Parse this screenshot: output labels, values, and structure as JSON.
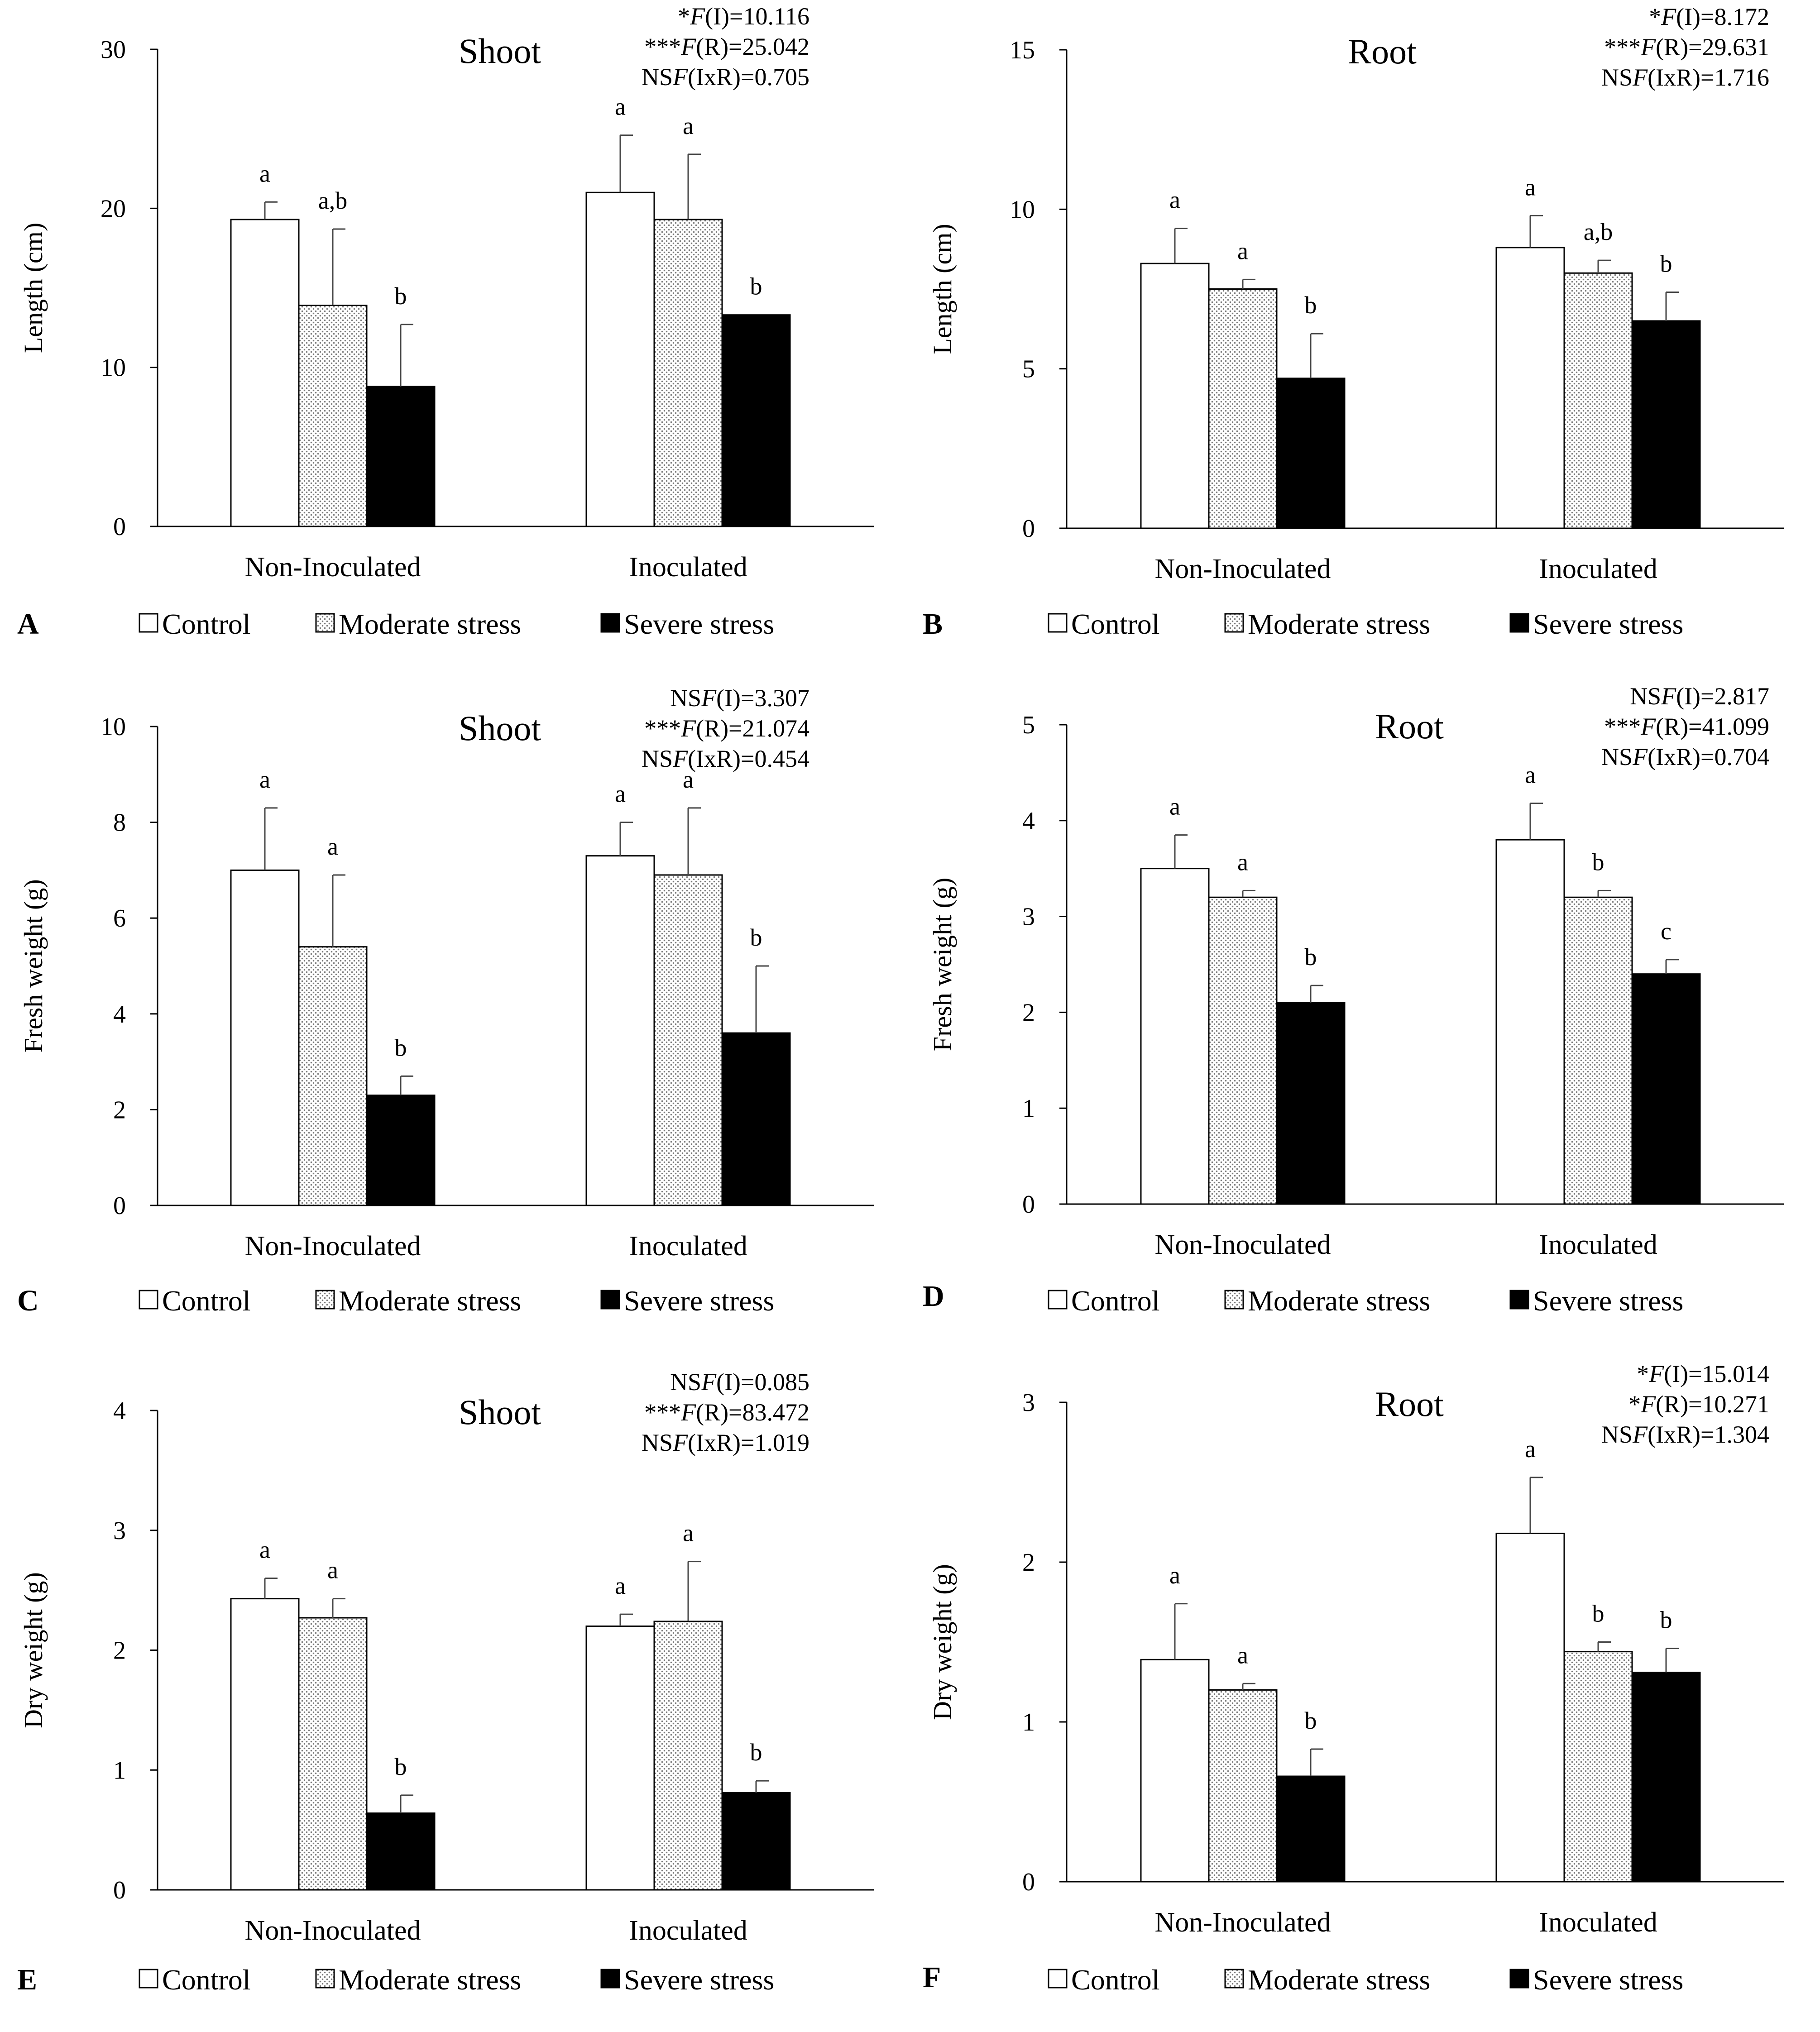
{
  "chart_data": [
    {
      "panel_label": "A",
      "type": "bar",
      "title": "Shoot",
      "ylabel": "Length (cm)",
      "ylim": [
        0,
        30
      ],
      "yticks": [
        0,
        10,
        20,
        30
      ],
      "categories": [
        "Non-Inoculated",
        "Inoculated"
      ],
      "series": [
        {
          "name": "Control",
          "values": [
            19.3,
            21.0
          ],
          "errors": [
            1.1,
            3.6
          ],
          "letters": [
            "a",
            "a"
          ]
        },
        {
          "name": "Moderate stress",
          "values": [
            13.9,
            19.3
          ],
          "errors": [
            4.8,
            4.1
          ],
          "letters": [
            "a,b",
            "a"
          ]
        },
        {
          "name": "Severe stress",
          "values": [
            8.8,
            13.3
          ],
          "errors": [
            3.9,
            0.0
          ],
          "letters": [
            "b",
            "b"
          ]
        }
      ],
      "stats": [
        "*F(I)=10.116",
        "***F(R)=25.042",
        "NSF(IxR)=0.705"
      ]
    },
    {
      "panel_label": "B",
      "type": "bar",
      "title": "Root",
      "ylabel": "Length (cm)",
      "ylim": [
        0,
        15
      ],
      "yticks": [
        0,
        5,
        10,
        15
      ],
      "categories": [
        "Non-Inoculated",
        "Inoculated"
      ],
      "series": [
        {
          "name": "Control",
          "values": [
            8.3,
            8.8
          ],
          "errors": [
            1.1,
            1.0
          ],
          "letters": [
            "a",
            "a"
          ]
        },
        {
          "name": "Moderate stress",
          "values": [
            7.5,
            8.0
          ],
          "errors": [
            0.3,
            0.4
          ],
          "letters": [
            "a",
            "a,b"
          ]
        },
        {
          "name": "Severe stress",
          "values": [
            4.7,
            6.5
          ],
          "errors": [
            1.4,
            0.9
          ],
          "letters": [
            "b",
            "b"
          ]
        }
      ],
      "stats": [
        "*F(I)=8.172",
        "***F(R)=29.631",
        "NSF(IxR)=1.716"
      ]
    },
    {
      "panel_label": "C",
      "type": "bar",
      "title": "Shoot",
      "ylabel": "Fresh weight (g)",
      "ylim": [
        0,
        10
      ],
      "yticks": [
        0,
        2,
        4,
        6,
        8,
        10
      ],
      "categories": [
        "Non-Inoculated",
        "Inoculated"
      ],
      "series": [
        {
          "name": "Control",
          "values": [
            7.0,
            7.3
          ],
          "errors": [
            1.3,
            0.7
          ],
          "letters": [
            "a",
            "a"
          ]
        },
        {
          "name": "Moderate stress",
          "values": [
            5.4,
            6.9
          ],
          "errors": [
            1.5,
            1.4
          ],
          "letters": [
            "a",
            "a"
          ]
        },
        {
          "name": "Severe stress",
          "values": [
            2.3,
            3.6
          ],
          "errors": [
            0.4,
            1.4
          ],
          "letters": [
            "b",
            "b"
          ]
        }
      ],
      "stats": [
        "NSF(I)=3.307",
        "***F(R)=21.074",
        "NSF(IxR)=0.454"
      ]
    },
    {
      "panel_label": "D",
      "type": "bar",
      "title": "Root",
      "ylabel": "Fresh weight (g)",
      "ylim": [
        0,
        5
      ],
      "yticks": [
        0,
        1,
        2,
        3,
        4,
        5
      ],
      "categories": [
        "Non-Inoculated",
        "Inoculated"
      ],
      "series": [
        {
          "name": "Control",
          "values": [
            3.5,
            3.8
          ],
          "errors": [
            0.35,
            0.38
          ],
          "letters": [
            "a",
            "a"
          ]
        },
        {
          "name": "Moderate stress",
          "values": [
            3.2,
            3.2
          ],
          "errors": [
            0.07,
            0.07
          ],
          "letters": [
            "a",
            "b"
          ]
        },
        {
          "name": "Severe stress",
          "values": [
            2.1,
            2.4
          ],
          "errors": [
            0.18,
            0.15
          ],
          "letters": [
            "b",
            "c"
          ]
        }
      ],
      "stats": [
        "NSF(I)=2.817",
        "***F(R)=41.099",
        "NSF(IxR)=0.704"
      ]
    },
    {
      "panel_label": "E",
      "type": "bar",
      "title": "Shoot",
      "ylabel": "Dry weight (g)",
      "ylim": [
        0,
        4
      ],
      "yticks": [
        0,
        1,
        2,
        3,
        4
      ],
      "categories": [
        "Non-Inoculated",
        "Inoculated"
      ],
      "series": [
        {
          "name": "Control",
          "values": [
            2.43,
            2.2
          ],
          "errors": [
            0.17,
            0.1
          ],
          "letters": [
            "a",
            "a"
          ]
        },
        {
          "name": "Moderate stress",
          "values": [
            2.27,
            2.24
          ],
          "errors": [
            0.16,
            0.5
          ],
          "letters": [
            "a",
            "a"
          ]
        },
        {
          "name": "Severe stress",
          "values": [
            0.64,
            0.81
          ],
          "errors": [
            0.15,
            0.1
          ],
          "letters": [
            "b",
            "b"
          ]
        }
      ],
      "stats": [
        "NSF(I)=0.085",
        "***F(R)=83.472",
        "NSF(IxR)=1.019"
      ]
    },
    {
      "panel_label": "F",
      "type": "bar",
      "title": "Root",
      "ylabel": "Dry weight (g)",
      "ylim": [
        0,
        3
      ],
      "yticks": [
        0,
        1,
        2,
        3
      ],
      "categories": [
        "Non-Inoculated",
        "Inoculated"
      ],
      "series": [
        {
          "name": "Control",
          "values": [
            1.39,
            2.18
          ],
          "errors": [
            0.35,
            0.35
          ],
          "letters": [
            "a",
            "a"
          ]
        },
        {
          "name": "Moderate stress",
          "values": [
            1.2,
            1.44
          ],
          "errors": [
            0.04,
            0.06
          ],
          "letters": [
            "a",
            "b"
          ]
        },
        {
          "name": "Severe stress",
          "values": [
            0.66,
            1.31
          ],
          "errors": [
            0.17,
            0.15
          ],
          "letters": [
            "b",
            "b"
          ]
        }
      ],
      "stats": [
        "*F(I)=15.014",
        "*F(R)=10.271",
        "NSF(IxR)=1.304"
      ]
    }
  ],
  "series_styles": {
    "Control": {
      "fill": "#ffffff"
    },
    "Moderate stress": {
      "fill": "dots",
      "dot_color": "#7a7a7a",
      "background": "#ffffff"
    },
    "Severe stress": {
      "fill": "#000000"
    }
  }
}
